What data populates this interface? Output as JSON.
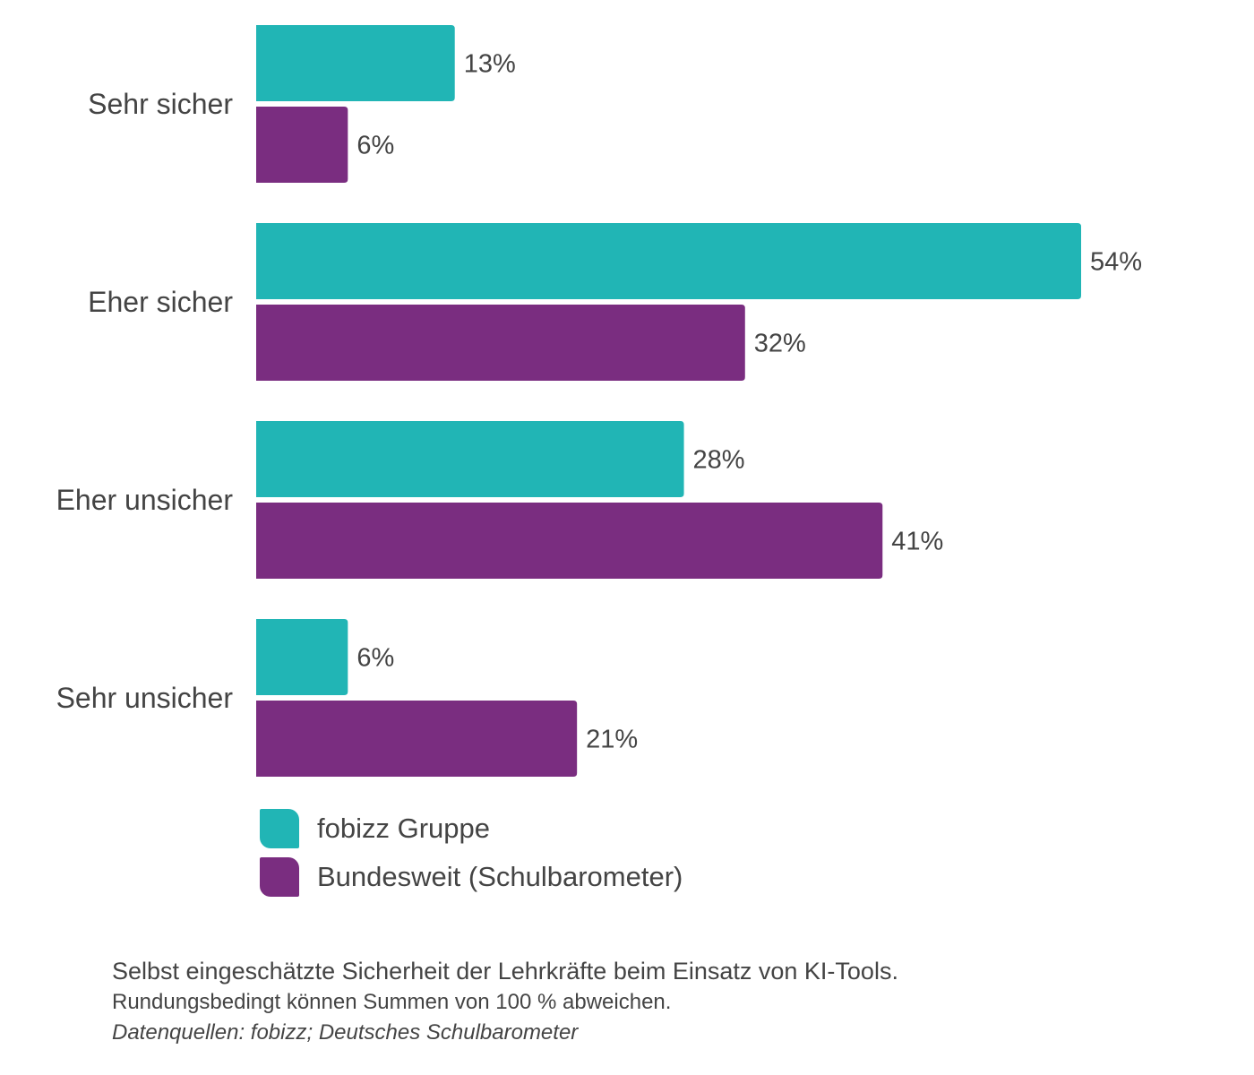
{
  "chart_data": {
    "type": "bar",
    "orientation": "horizontal",
    "categories": [
      "Sehr sicher",
      "Eher sicher",
      "Eher unsicher",
      "Sehr unsicher"
    ],
    "series": [
      {
        "name": "fobizz Gruppe",
        "color": "#21b5b5",
        "values": [
          13,
          54,
          28,
          6
        ]
      },
      {
        "name": "Bundesweit (Schulbarometer)",
        "color": "#7a2d80",
        "values": [
          6,
          32,
          41,
          21
        ]
      }
    ],
    "value_suffix": "%",
    "xlim": [
      0,
      54
    ],
    "grid": false,
    "legend_position": "bottom-left",
    "title": "",
    "xlabel": "",
    "ylabel": ""
  },
  "legend": [
    {
      "label": "fobizz Gruppe",
      "color": "#21b5b5"
    },
    {
      "label": "Bundesweit (Schulbarometer)",
      "color": "#7a2d80"
    }
  ],
  "caption": {
    "line1": "Selbst eingeschätzte Sicherheit der Lehrkräfte beim Einsatz von KI-Tools.",
    "line2": "Rundungsbedingt können Summen von 100 % abweichen.",
    "line3": "Datenquellen: fobizz; Deutsches Schulbarometer"
  }
}
